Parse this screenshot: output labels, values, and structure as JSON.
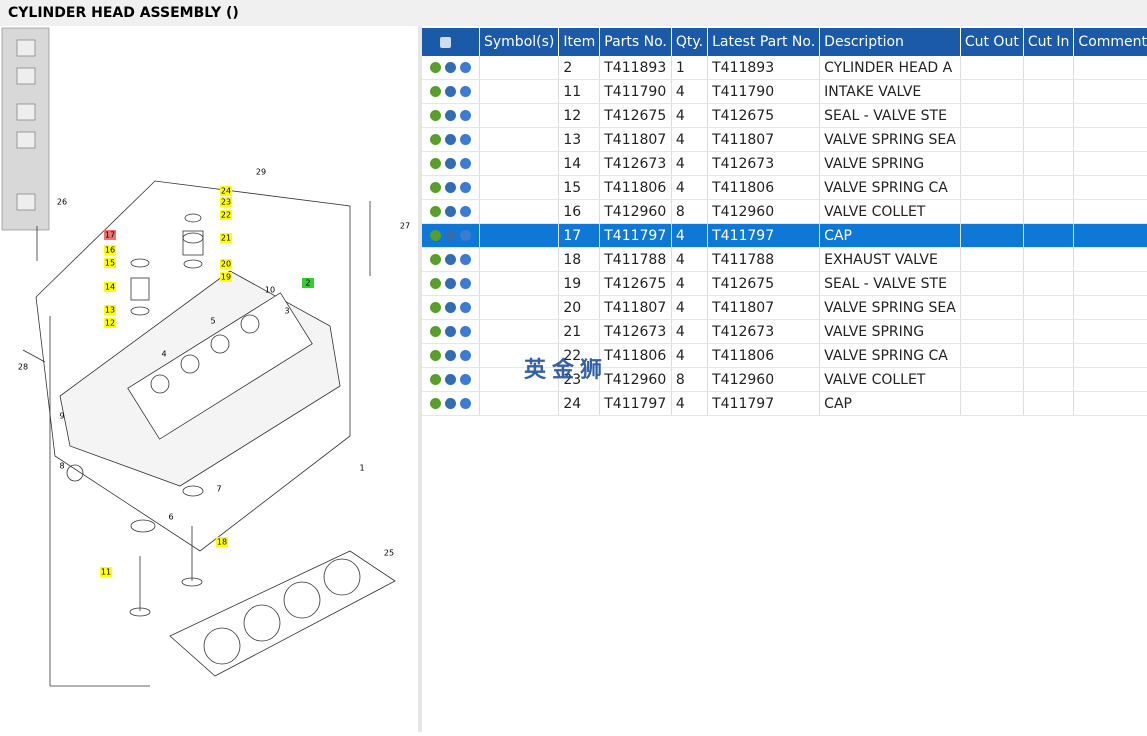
{
  "header": {
    "title": "CYLINDER HEAD ASSEMBLY ()"
  },
  "diagram": {
    "callouts": [
      {
        "label": "29"
      },
      {
        "label": "24",
        "color": "#ffff00"
      },
      {
        "label": "23",
        "color": "#ffff00"
      },
      {
        "label": "22",
        "color": "#ffff00"
      },
      {
        "label": "21",
        "color": "#ffff00"
      },
      {
        "label": "20",
        "color": "#ffff00"
      },
      {
        "label": "19",
        "color": "#ffff00"
      },
      {
        "label": "17",
        "color": "#f07070"
      },
      {
        "label": "16",
        "color": "#ffff00"
      },
      {
        "label": "15",
        "color": "#ffff00"
      },
      {
        "label": "14",
        "color": "#ffff00"
      },
      {
        "label": "13",
        "color": "#ffff00"
      },
      {
        "label": "12",
        "color": "#ffff00"
      },
      {
        "label": "26"
      },
      {
        "label": "27"
      },
      {
        "label": "10"
      },
      {
        "label": "2",
        "color": "#33cc33"
      },
      {
        "label": "3"
      },
      {
        "label": "5"
      },
      {
        "label": "4"
      },
      {
        "label": "28"
      },
      {
        "label": "9"
      },
      {
        "label": "8"
      },
      {
        "label": "7"
      },
      {
        "label": "6"
      },
      {
        "label": "1"
      },
      {
        "label": "18",
        "color": "#ffff00"
      },
      {
        "label": "11",
        "color": "#ffff00"
      },
      {
        "label": "25"
      }
    ]
  },
  "table": {
    "columns": [
      "Symbol(s)",
      "Item",
      "Parts No.",
      "Qty.",
      "Latest Part No.",
      "Description",
      "Cut Out",
      "Cut In",
      "Comment"
    ],
    "selected_row": 7,
    "rows": [
      [
        "2",
        "T411893",
        "1",
        "T411893",
        "CYLINDER HEAD A"
      ],
      [
        "11",
        "T411790",
        "4",
        "T411790",
        "INTAKE VALVE"
      ],
      [
        "12",
        "T412675",
        "4",
        "T412675",
        "SEAL - VALVE STE"
      ],
      [
        "13",
        "T411807",
        "4",
        "T411807",
        "VALVE SPRING SEA"
      ],
      [
        "14",
        "T412673",
        "4",
        "T412673",
        "VALVE SPRING"
      ],
      [
        "15",
        "T411806",
        "4",
        "T411806",
        "VALVE SPRING CA"
      ],
      [
        "16",
        "T412960",
        "8",
        "T412960",
        "VALVE COLLET"
      ],
      [
        "17",
        "T411797",
        "4",
        "T411797",
        "CAP"
      ],
      [
        "18",
        "T411788",
        "4",
        "T411788",
        "EXHAUST VALVE"
      ],
      [
        "19",
        "T412675",
        "4",
        "T412675",
        "SEAL - VALVE STE"
      ],
      [
        "20",
        "T411807",
        "4",
        "T411807",
        "VALVE SPRING SEA"
      ],
      [
        "21",
        "T412673",
        "4",
        "T412673",
        "VALVE SPRING"
      ],
      [
        "22",
        "T411806",
        "4",
        "T411806",
        "VALVE SPRING CA"
      ],
      [
        "23",
        "T412960",
        "8",
        "T412960",
        "VALVE COLLET"
      ],
      [
        "24",
        "T411797",
        "4",
        "T411797",
        "CAP"
      ]
    ]
  },
  "watermark": "英金狮"
}
